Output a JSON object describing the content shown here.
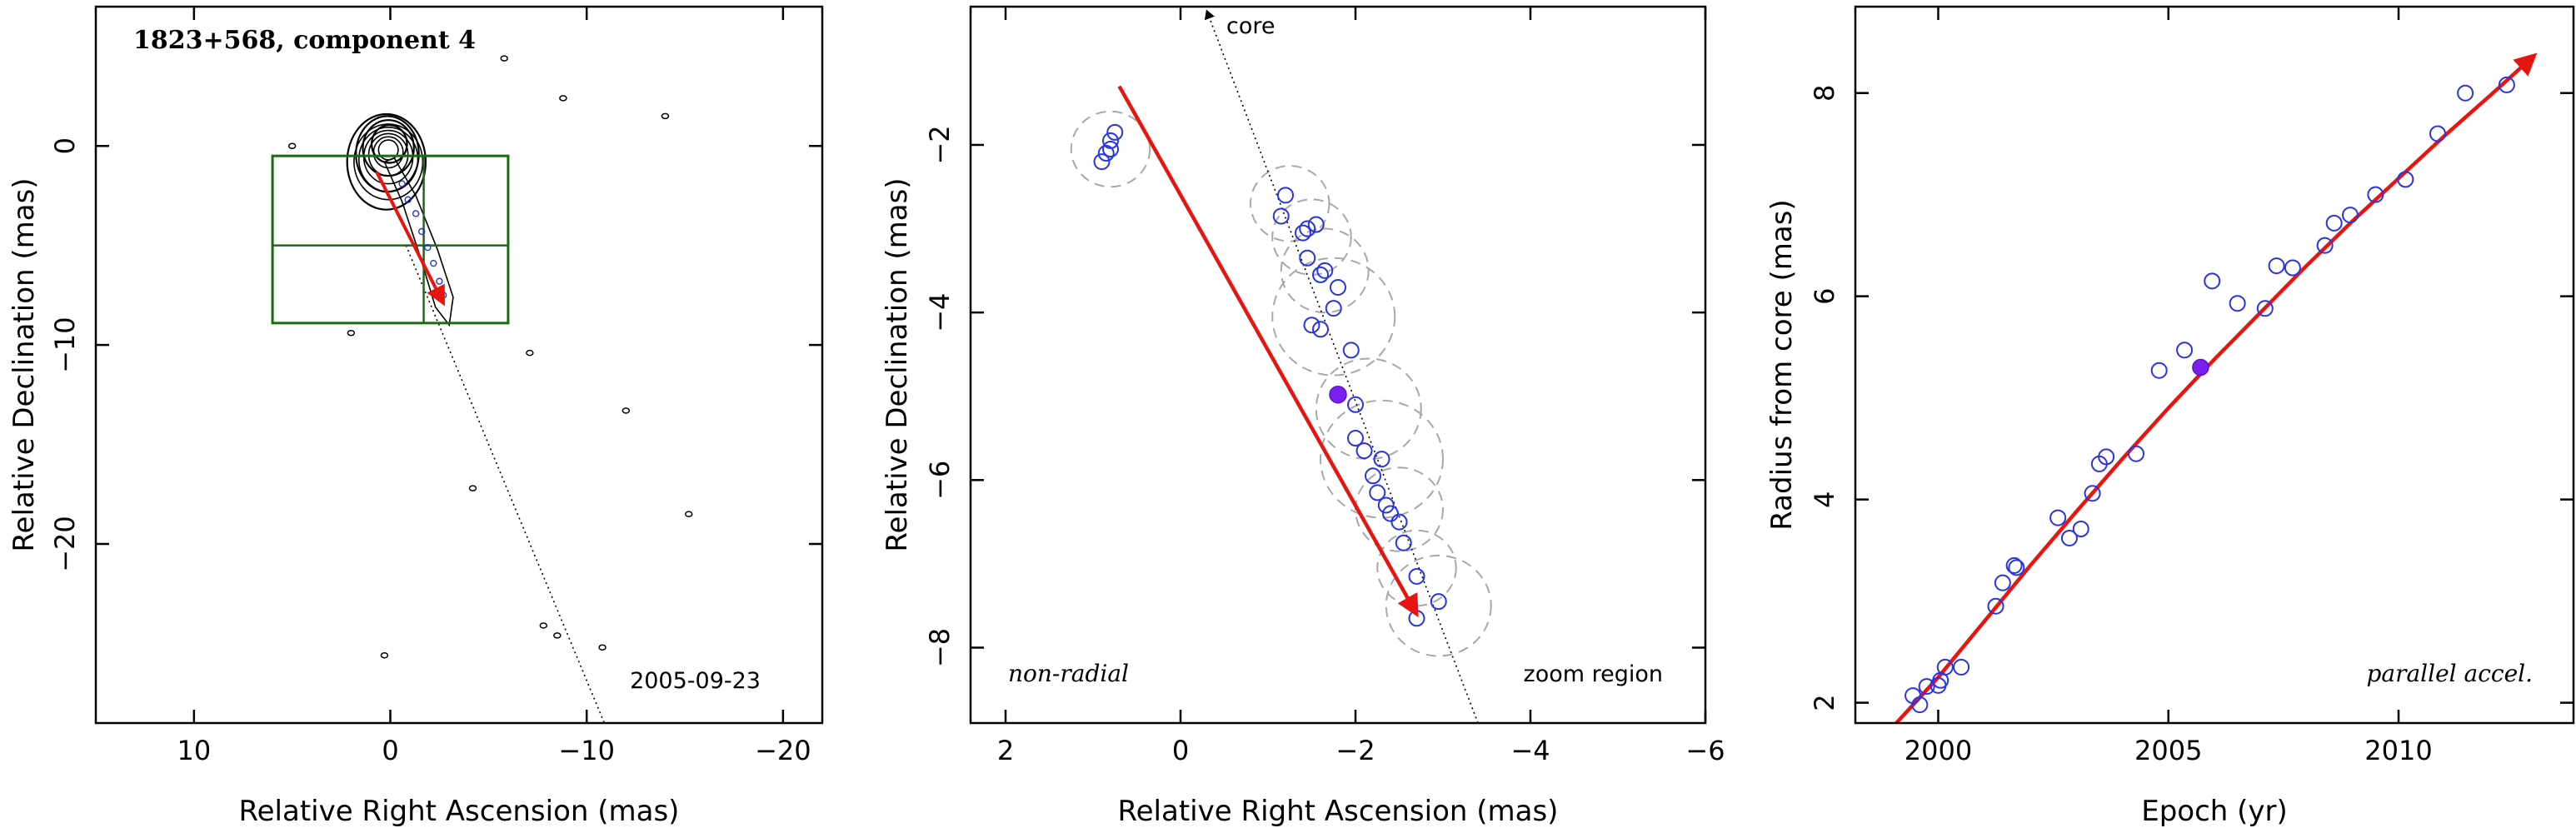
{
  "chart_data": [
    {
      "type": "contour",
      "title": "1823+568, component 4",
      "xlabel": "Relative Right Ascension (mas)",
      "ylabel": "Relative Declination (mas)",
      "xlim": [
        15,
        -22
      ],
      "ylim": [
        -29,
        7
      ],
      "xticks": [
        10,
        0,
        -10,
        -20
      ],
      "yticks": [
        0,
        -10,
        -20
      ],
      "epoch_label": "2005-09-23",
      "core_contours": [
        {
          "cx": 0.05,
          "cy": 0.1,
          "rx": 0.9,
          "ry": 0.95
        },
        {
          "cx": 0.1,
          "cy": -0.1,
          "rx": 1.3,
          "ry": 1.4
        },
        {
          "cx": 0.15,
          "cy": -0.4,
          "rx": 1.6,
          "ry": 1.9
        },
        {
          "cx": 0.2,
          "cy": -0.8,
          "rx": 2.0,
          "ry": 2.4
        }
      ],
      "jet_contour": [
        [
          -0.2,
          -0.6
        ],
        [
          -1.3,
          -2.5
        ],
        [
          -2.4,
          -5.2
        ],
        [
          -3.2,
          -7.6
        ],
        [
          -3.0,
          -9.0
        ],
        [
          -2.3,
          -8.1
        ],
        [
          -1.5,
          -5.5
        ],
        [
          -0.6,
          -2.8
        ],
        [
          0.3,
          -0.8
        ]
      ],
      "small_contours": [
        [
          5.0,
          0.0
        ],
        [
          -5.8,
          4.4
        ],
        [
          -8.8,
          2.4
        ],
        [
          -14.0,
          1.5
        ],
        [
          -7.1,
          -10.4
        ],
        [
          -12.0,
          -13.3
        ],
        [
          -4.2,
          -17.2
        ],
        [
          -15.2,
          -18.5
        ],
        [
          -7.8,
          -24.1
        ],
        [
          -8.5,
          -24.6
        ],
        [
          -10.8,
          -25.2
        ],
        [
          0.3,
          -25.6
        ],
        [
          2.0,
          -9.4
        ]
      ],
      "box": {
        "x": [
          6.0,
          -6.0
        ],
        "y": [
          -0.5,
          -8.9
        ],
        "xdiv": -1.7,
        "ydiv": -5.0
      },
      "model_components": [
        [
          -0.6,
          -1.9
        ],
        [
          -0.9,
          -2.7
        ],
        [
          -1.3,
          -3.4
        ],
        [
          -1.6,
          -4.3
        ],
        [
          -1.9,
          -5.1
        ],
        [
          -2.2,
          -5.9
        ],
        [
          -2.5,
          -6.8
        ],
        [
          -2.7,
          -7.5
        ]
      ],
      "fit_arrow": {
        "from": [
          0.7,
          -1.3
        ],
        "to": [
          -2.7,
          -7.9
        ]
      },
      "trajectory_line": {
        "from": [
          -0.8,
          -5.0
        ],
        "to": [
          -10.9,
          -29.0
        ]
      }
    },
    {
      "type": "scatter",
      "xlabel": "Relative Right Ascension (mas)",
      "ylabel": "Relative Declination (mas)",
      "xlim": [
        2.4,
        -6.0
      ],
      "ylim": [
        -8.9,
        -0.35
      ],
      "xticks": [
        2,
        0,
        -2,
        -4,
        -6
      ],
      "yticks": [
        -2,
        -4,
        -6,
        -8
      ],
      "label_left": "non-radial",
      "label_right": "zoom region",
      "core_label": "core",
      "core_line": {
        "from": [
          -0.3,
          -0.4
        ],
        "to": [
          -3.4,
          -8.9
        ]
      },
      "fit_arrow": {
        "from": [
          0.7,
          -1.3
        ],
        "to": [
          -2.7,
          -7.6
        ]
      },
      "points": [
        [
          0.75,
          -1.85
        ],
        [
          0.8,
          -1.95
        ],
        [
          0.8,
          -2.05
        ],
        [
          0.85,
          -2.1
        ],
        [
          0.9,
          -2.2
        ],
        [
          -1.2,
          -2.6
        ],
        [
          -1.15,
          -2.85
        ],
        [
          -1.45,
          -3.0
        ],
        [
          -1.4,
          -3.05
        ],
        [
          -1.55,
          -2.95
        ],
        [
          -1.45,
          -3.35
        ],
        [
          -1.6,
          -3.55
        ],
        [
          -1.65,
          -3.5
        ],
        [
          -1.8,
          -3.7
        ],
        [
          -1.5,
          -4.15
        ],
        [
          -1.75,
          -3.95
        ],
        [
          -1.95,
          -4.45
        ],
        [
          -1.6,
          -4.2
        ],
        [
          -2.0,
          -5.1
        ],
        [
          -2.0,
          -5.5
        ],
        [
          -2.1,
          -5.65
        ],
        [
          -2.2,
          -5.95
        ],
        [
          -2.3,
          -5.75
        ],
        [
          -2.25,
          -6.15
        ],
        [
          -2.35,
          -6.3
        ],
        [
          -2.4,
          -6.4
        ],
        [
          -2.5,
          -6.5
        ],
        [
          -2.55,
          -6.75
        ],
        [
          -2.7,
          -7.15
        ],
        [
          -2.95,
          -7.45
        ],
        [
          -2.7,
          -7.65
        ]
      ],
      "highlight_point": [
        -1.8,
        -4.98
      ],
      "error_circles": [
        [
          0.8,
          -2.05,
          0.45
        ],
        [
          -1.25,
          -2.7,
          0.45
        ],
        [
          -1.5,
          -3.1,
          0.45
        ],
        [
          -1.65,
          -3.5,
          0.5
        ],
        [
          -1.75,
          -4.05,
          0.7
        ],
        [
          -2.15,
          -5.15,
          0.6
        ],
        [
          -2.3,
          -5.75,
          0.7
        ],
        [
          -2.5,
          -6.35,
          0.5
        ],
        [
          -2.7,
          -7.05,
          0.45
        ],
        [
          -2.95,
          -7.5,
          0.6
        ]
      ]
    },
    {
      "type": "scatter",
      "xlabel": "Epoch (yr)",
      "ylabel": "Radius from core (mas)",
      "xlim": [
        1998.2,
        2013.8
      ],
      "ylim": [
        1.8,
        8.85
      ],
      "xticks": [
        2000,
        2005,
        2010
      ],
      "yticks": [
        2,
        4,
        6,
        8
      ],
      "label_right": "parallel accel.",
      "points": [
        [
          1999.45,
          2.07
        ],
        [
          1999.6,
          1.98
        ],
        [
          1999.75,
          2.16
        ],
        [
          2000.0,
          2.17
        ],
        [
          2000.05,
          2.22
        ],
        [
          2000.15,
          2.35
        ],
        [
          2000.5,
          2.35
        ],
        [
          2001.25,
          2.95
        ],
        [
          2001.4,
          3.18
        ],
        [
          2001.65,
          3.35
        ],
        [
          2001.7,
          3.33
        ],
        [
          2002.6,
          3.82
        ],
        [
          2002.85,
          3.62
        ],
        [
          2003.1,
          3.71
        ],
        [
          2003.35,
          4.06
        ],
        [
          2003.5,
          4.35
        ],
        [
          2003.65,
          4.42
        ],
        [
          2004.3,
          4.45
        ],
        [
          2004.8,
          5.27
        ],
        [
          2005.35,
          5.47
        ],
        [
          2005.95,
          6.15
        ],
        [
          2006.5,
          5.93
        ],
        [
          2007.1,
          5.88
        ],
        [
          2007.35,
          6.3
        ],
        [
          2007.7,
          6.28
        ],
        [
          2008.4,
          6.5
        ],
        [
          2008.6,
          6.72
        ],
        [
          2008.95,
          6.8
        ],
        [
          2009.5,
          7.0
        ],
        [
          2010.15,
          7.15
        ],
        [
          2010.85,
          7.6
        ],
        [
          2011.45,
          8.0
        ],
        [
          2012.35,
          8.08
        ]
      ],
      "highlight_point": [
        2005.7,
        5.3
      ],
      "fit_curve": [
        [
          1999.05,
          1.78
        ],
        [
          2000,
          2.25
        ],
        [
          2001,
          2.8
        ],
        [
          2002,
          3.35
        ],
        [
          2003,
          3.88
        ],
        [
          2004,
          4.4
        ],
        [
          2005,
          4.9
        ],
        [
          2006,
          5.38
        ],
        [
          2007,
          5.84
        ],
        [
          2008,
          6.3
        ],
        [
          2009,
          6.74
        ],
        [
          2010,
          7.16
        ],
        [
          2011,
          7.58
        ],
        [
          2012,
          7.98
        ],
        [
          2012.95,
          8.37
        ]
      ]
    }
  ]
}
